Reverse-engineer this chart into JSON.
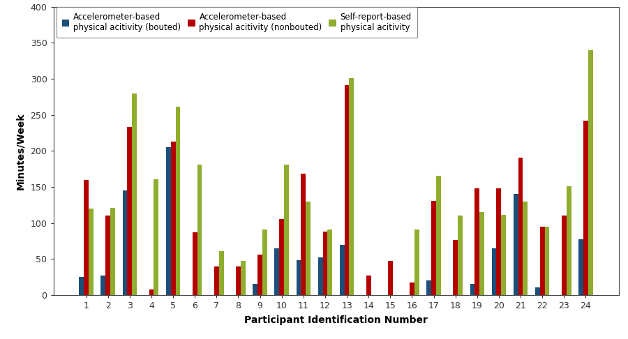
{
  "participants": [
    1,
    2,
    3,
    4,
    5,
    6,
    7,
    8,
    9,
    10,
    11,
    12,
    13,
    14,
    15,
    16,
    17,
    18,
    19,
    20,
    21,
    22,
    23,
    24
  ],
  "bouted": [
    25,
    27,
    145,
    0,
    205,
    0,
    0,
    0,
    15,
    65,
    48,
    52,
    70,
    0,
    0,
    0,
    20,
    0,
    15,
    65,
    140,
    10,
    0,
    77
  ],
  "nonbouted": [
    160,
    110,
    233,
    8,
    213,
    87,
    40,
    40,
    56,
    105,
    168,
    88,
    291,
    27,
    47,
    17,
    131,
    76,
    148,
    148,
    191,
    95,
    110,
    242
  ],
  "selfreport": [
    120,
    121,
    280,
    161,
    261,
    181,
    61,
    47,
    91,
    181,
    130,
    91,
    301,
    0,
    0,
    91,
    165,
    110,
    115,
    111,
    130,
    95,
    151,
    340
  ],
  "color_bouted": "#1a4f79",
  "color_nonbouted": "#b50000",
  "color_selfreport": "#8fad2e",
  "ylabel": "Minutes/Week",
  "xlabel": "Participant Identification Number",
  "ylim": [
    0,
    400
  ],
  "yticks": [
    0,
    50,
    100,
    150,
    200,
    250,
    300,
    350,
    400
  ],
  "legend_labels": [
    "Accelerometer-based\nphysical acitivity (bouted)",
    "Accelerometer-based\nphysical acitivity (nonbouted)",
    "Self-report-based\nphysical acitivity"
  ],
  "bar_width": 0.22,
  "figure_width": 9.0,
  "figure_height": 4.86,
  "dpi": 100,
  "background_color": "#ffffff"
}
